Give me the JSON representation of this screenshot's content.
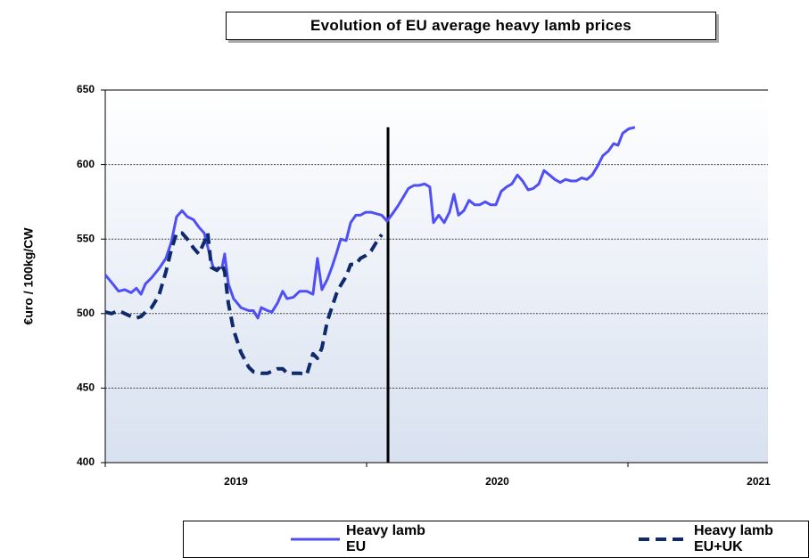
{
  "chart_data": {
    "type": "line",
    "title": "Evolution of EU average heavy lamb prices",
    "y_label": "€uro / 100kg/CW",
    "ylim": [
      400,
      650
    ],
    "yticks": [
      400,
      450,
      500,
      550,
      600,
      650
    ],
    "xlim": [
      2019,
      2021.536
    ],
    "xticks": [
      2019,
      2020,
      2021
    ],
    "xtick_labels": [
      {
        "value": 2019.5,
        "label": "2019"
      },
      {
        "value": 2020.5,
        "label": "2020"
      },
      {
        "value": 2021.5,
        "label": "2021"
      }
    ],
    "grid": true,
    "vline": {
      "x": 2020.082,
      "y": 625
    },
    "series": [
      {
        "name": "Heavy lamb EU",
        "color": "#4f4ff5",
        "dash": false,
        "x": [
          2019.0,
          2019.024,
          2019.051,
          2019.075,
          2019.099,
          2019.119,
          2019.137,
          2019.154,
          2019.177,
          2019.205,
          2019.232,
          2019.253,
          2019.273,
          2019.294,
          2019.314,
          2019.338,
          2019.358,
          2019.379,
          2019.399,
          2019.413,
          2019.427,
          2019.447,
          2019.457,
          2019.471,
          2019.491,
          2019.519,
          2019.549,
          2019.567,
          2019.584,
          2019.597,
          2019.621,
          2019.638,
          2019.659,
          2019.679,
          2019.696,
          2019.72,
          2019.744,
          2019.771,
          2019.795,
          2019.812,
          2019.829,
          2019.85,
          2019.867,
          2019.884,
          2019.901,
          2019.922,
          2019.939,
          2019.959,
          2019.976,
          2019.997,
          2020.017,
          2020.038,
          2020.058,
          2020.078,
          2020.099,
          2020.119,
          2020.14,
          2020.16,
          2020.181,
          2020.201,
          2020.222,
          2020.242,
          2020.256,
          2020.276,
          2020.297,
          2020.317,
          2020.334,
          2020.352,
          2020.372,
          2020.392,
          2020.413,
          2020.433,
          2020.454,
          2020.474,
          2020.495,
          2020.515,
          2020.536,
          2020.556,
          2020.577,
          2020.597,
          2020.618,
          2020.638,
          2020.659,
          2020.679,
          2020.7,
          2020.72,
          2020.741,
          2020.761,
          2020.782,
          2020.802,
          2020.823,
          2020.843,
          2020.863,
          2020.884,
          2020.904,
          2020.925,
          2020.945,
          2020.962,
          2020.98,
          2021.003,
          2021.027
        ],
        "values": [
          526,
          521,
          515,
          516,
          514,
          517,
          513,
          520,
          524,
          530,
          537,
          548,
          565,
          569,
          565,
          563,
          558,
          554,
          540,
          531,
          530,
          531,
          540,
          520,
          510,
          504,
          502,
          502,
          497,
          504,
          502,
          501,
          507,
          515,
          510,
          511,
          515,
          515,
          513,
          537,
          516,
          523,
          531,
          540,
          550,
          549,
          561,
          566,
          566,
          568,
          568,
          567,
          566,
          562,
          567,
          572,
          578,
          584,
          586,
          586,
          587,
          585,
          561,
          566,
          561,
          568,
          580,
          566,
          569,
          576,
          573,
          573,
          575,
          573,
          573,
          582,
          585,
          587,
          593,
          589,
          583,
          584,
          587,
          596,
          593,
          590,
          588,
          590,
          589,
          589,
          591,
          590,
          593,
          599,
          606,
          609,
          614,
          613,
          621,
          624,
          625
        ]
      },
      {
        "name": "Heavy lamb EU+UK",
        "color": "#0f2a6b",
        "dash": true,
        "x": [
          2019.0,
          2019.024,
          2019.051,
          2019.075,
          2019.099,
          2019.119,
          2019.137,
          2019.154,
          2019.177,
          2019.205,
          2019.232,
          2019.253,
          2019.273,
          2019.294,
          2019.314,
          2019.338,
          2019.358,
          2019.379,
          2019.392,
          2019.406,
          2019.427,
          2019.447,
          2019.457,
          2019.471,
          2019.491,
          2019.519,
          2019.549,
          2019.567,
          2019.597,
          2019.621,
          2019.659,
          2019.679,
          2019.696,
          2019.72,
          2019.744,
          2019.771,
          2019.795,
          2019.812,
          2019.829,
          2019.85,
          2019.867,
          2019.884,
          2019.901,
          2019.922,
          2019.939,
          2019.959,
          2019.976,
          2019.997,
          2020.017,
          2020.038,
          2020.058
        ],
        "values": [
          501,
          500,
          502,
          500,
          498,
          497,
          498,
          501,
          504,
          512,
          528,
          543,
          554,
          554,
          550,
          544,
          540,
          548,
          554,
          531,
          529,
          533,
          528,
          507,
          489,
          474,
          464,
          461,
          460,
          460,
          463,
          463,
          460,
          460,
          460,
          459,
          473,
          470,
          477,
          495,
          504,
          513,
          519,
          525,
          533,
          533,
          537,
          539,
          542,
          548,
          553
        ]
      }
    ]
  }
}
